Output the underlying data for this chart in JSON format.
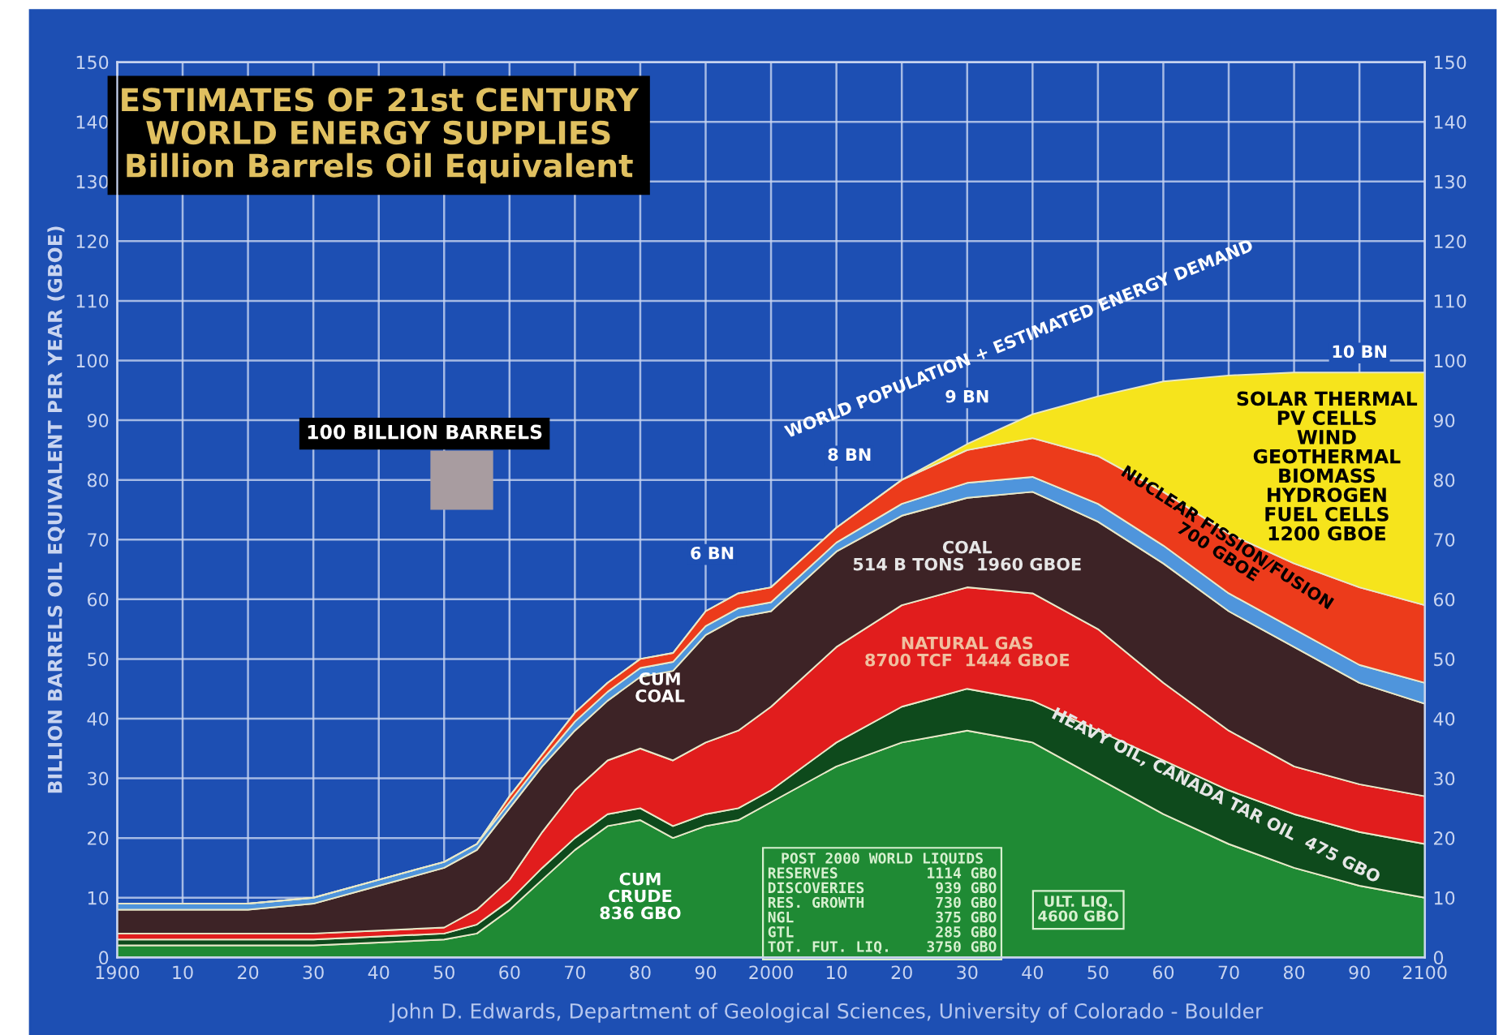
{
  "chart_data": {
    "type": "area",
    "stacked": true,
    "title": "ESTIMATES OF 21st CENTURY\nWORLD ENERGY SUPPLIES\nBillion Barrels Oil Equivalent",
    "ylabel": "BILLION BARRELS OIL EQUIVALENT PER YEAR (GBOE)",
    "x": [
      1900,
      1910,
      1920,
      1930,
      1940,
      1950,
      1955,
      1960,
      1965,
      1970,
      1975,
      1980,
      1985,
      1990,
      1995,
      2000,
      2010,
      2020,
      2030,
      2040,
      2050,
      2060,
      2070,
      2080,
      2090,
      2100
    ],
    "series": [
      {
        "color": "#1f8a34",
        "values": [
          2,
          2,
          2,
          2,
          2.5,
          3,
          4,
          8,
          13,
          18,
          22,
          23,
          20,
          22,
          23,
          26,
          32,
          36,
          38,
          36,
          30,
          24,
          19,
          15,
          12,
          10
        ]
      },
      {
        "color": "#0e4a1c",
        "values": [
          1,
          1,
          1,
          1,
          1,
          1,
          1.5,
          1.5,
          2,
          2,
          2,
          2,
          2,
          2,
          2,
          2,
          4,
          6,
          7,
          7,
          8,
          9,
          9,
          9,
          9,
          9
        ]
      },
      {
        "color": "#e11d1d",
        "values": [
          1,
          1,
          1,
          1,
          1,
          1,
          2.5,
          3.5,
          6,
          8,
          9,
          10,
          11,
          12,
          13,
          14,
          16,
          17,
          17,
          18,
          17,
          13,
          10,
          8,
          8,
          8
        ]
      },
      {
        "color": "#3d2326",
        "values": [
          4,
          4,
          4,
          5,
          7.5,
          10,
          10,
          12,
          11,
          10,
          10,
          12,
          15,
          18,
          19,
          16,
          16,
          15,
          15,
          17,
          18,
          20,
          20,
          20,
          17,
          15.5
        ]
      },
      {
        "color": "#4f95dc",
        "values": [
          1,
          1,
          1,
          1,
          1,
          1,
          1,
          1,
          1,
          1.5,
          1.5,
          1.5,
          1.5,
          1.5,
          1.5,
          1.5,
          1.5,
          2,
          2.5,
          2.5,
          3,
          3,
          3,
          3,
          3,
          3.5
        ]
      },
      {
        "color": "#ec3b1b",
        "values": [
          0,
          0,
          0,
          0,
          0,
          0,
          0,
          1,
          1,
          1.5,
          1.5,
          1.5,
          1.5,
          2.5,
          2.5,
          2.5,
          2.5,
          4,
          5.5,
          6.5,
          8,
          9,
          10,
          11,
          13,
          13
        ]
      },
      {
        "color": "#f6e41c",
        "values": [
          0,
          0,
          0,
          0,
          0,
          0,
          0,
          0,
          0,
          0,
          0,
          0,
          0,
          0,
          0,
          0,
          0,
          0,
          1,
          4,
          10,
          18.5,
          26.5,
          32,
          36,
          39
        ]
      }
    ],
    "xlim": [
      1900,
      2100
    ],
    "xticks": [
      1900,
      {
        "value": 1910,
        "label": "10"
      },
      {
        "value": 1920,
        "label": "20"
      },
      {
        "value": 1930,
        "label": "30"
      },
      {
        "value": 1940,
        "label": "40"
      },
      {
        "value": 1950,
        "label": "50"
      },
      {
        "value": 1960,
        "label": "60"
      },
      {
        "value": 1970,
        "label": "70"
      },
      {
        "value": 1980,
        "label": "80"
      },
      {
        "value": 1990,
        "label": "90"
      },
      2000,
      {
        "value": 2010,
        "label": "10"
      },
      {
        "value": 2020,
        "label": "20"
      },
      {
        "value": 2030,
        "label": "30"
      },
      {
        "value": 2040,
        "label": "40"
      },
      {
        "value": 2050,
        "label": "50"
      },
      {
        "value": 2060,
        "label": "60"
      },
      {
        "value": 2070,
        "label": "70"
      },
      {
        "value": 2080,
        "label": "80"
      },
      {
        "value": 2090,
        "label": "90"
      },
      2100
    ],
    "ylim": [
      0,
      150
    ],
    "yticks": [
      0,
      10,
      20,
      30,
      40,
      50,
      60,
      70,
      80,
      90,
      100,
      110,
      120,
      130,
      140,
      150
    ],
    "y2lim": [
      0,
      150
    ],
    "y2ticks": [
      0,
      10,
      20,
      30,
      40,
      50,
      60,
      70,
      80,
      90,
      100,
      110,
      120,
      130,
      140,
      150
    ],
    "grid": true,
    "annotations": [
      "WORLD POPULATION + ESTIMATED ENERGY DEMAND",
      "6 BN",
      "8 BN",
      "9 BN",
      "10 BN",
      "SOLAR THERMAL\nPV CELLS\nWIND\nGEOTHERMAL\nBIOMASS\nHYDROGEN\nFUEL CELLS\n1200 GBOE",
      "NUCLEAR FISSION/FUSION\n700 GBOE",
      "COAL\n514 B TONS  1960 GBOE",
      "NATURAL GAS\n8700 TCF  1444 GBOE",
      "HEAVY OIL, CANADA TAR OIL  475 GBO",
      "CUM\nCOAL",
      "CUM\nCRUDE\n836 GBO",
      "POST 2000 WORLD LIQUIDS\nRESERVES          1114 GBO\nDISCOVERIES        939 GBO\nRES. GROWTH        730 GBO\nNGL                375 GBO\nGTL                285 GBO\nTOT. FUT. LIQ.    3750 GBO",
      "ULT. LIQ.\n4600 GBO",
      "100 BILLION BARRELS",
      "John D. Edwards, Department of Geological Sciences, University of Colorado - Boulder"
    ]
  }
}
